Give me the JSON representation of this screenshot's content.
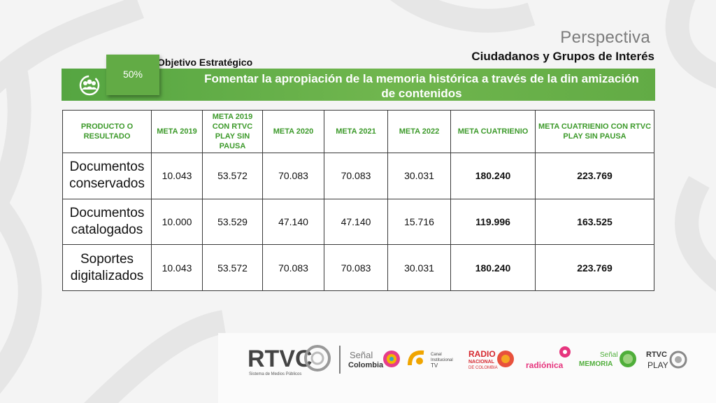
{
  "header": {
    "title": "Perspectiva",
    "subtitle": "Ciudadanos y Grupos de Interés",
    "objective_label": "Objetivo Estratégico",
    "percent": "50%",
    "objective_text": "Fomentar la apropiación de  la memoria histórica a través de la din amización de contenidos"
  },
  "table": {
    "headers": [
      "PRODUCTO O RESULTADO",
      "META 2019",
      "META 2019 CON RTVC PLAY SIN PAUSA",
      "META 2020",
      "META 2021",
      "META 2022",
      "META CUATRIENIO",
      "META CUATRIENIO CON RTVC PLAY SIN PAUSA"
    ],
    "rows": [
      [
        "Documentos conservados",
        "10.043",
        "53.572",
        "70.083",
        "70.083",
        "30.031",
        "180.240",
        "223.769"
      ],
      [
        "Documentos catalogados",
        "10.000",
        "53.529",
        "47.140",
        "47.140",
        "15.716",
        "119.996",
        "163.525"
      ],
      [
        "Soportes digitalizados",
        "10.043",
        "53.572",
        "70.083",
        "70.083",
        "30.031",
        "180.240",
        "223.769"
      ]
    ]
  },
  "footer": {
    "rtvc": "RTVC",
    "rtvc_tagline": "Sistema de Medios Públicos",
    "senal_colombia_1": "Señal",
    "senal_colombia_2": "Colombia",
    "canal_1": "Canal",
    "canal_2": "Institucional",
    "canal_3": "TV",
    "radio_1": "RADIO",
    "radio_2": "NACIONAL",
    "radio_3": "DE COLOMBIA",
    "radionica": "radiónica",
    "memoria_1": "Señal",
    "memoria_2": "MEMORIA",
    "play_1": "RTVC",
    "play_2": "PLAY"
  },
  "colors": {
    "green": "#62ab45",
    "header_green": "#3d9a2b"
  }
}
